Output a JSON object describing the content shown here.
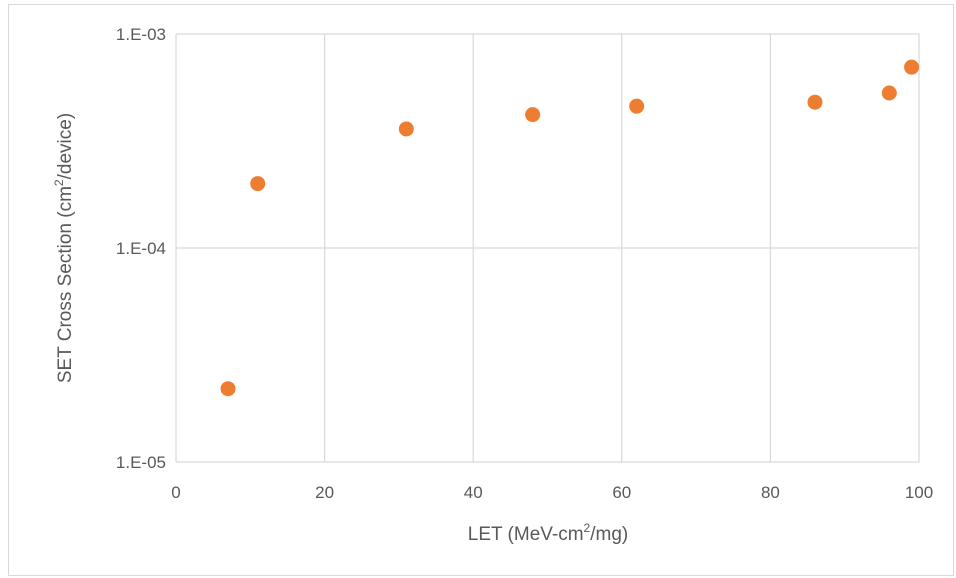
{
  "chart_data": {
    "type": "scatter",
    "xlabel": {
      "pre": "LET (MeV-cm",
      "sup": "2",
      "post": "/mg)"
    },
    "ylabel": {
      "pre": "SET Cross Section (cm",
      "sup": "2",
      "post": "/device)"
    },
    "xlim": [
      0,
      100
    ],
    "x_ticks": [
      0,
      20,
      40,
      60,
      80,
      100
    ],
    "x_tick_labels": [
      "0",
      "20",
      "40",
      "60",
      "80",
      "100"
    ],
    "y_scale": "log",
    "ylim": [
      1e-05,
      0.001
    ],
    "y_ticks": [
      1e-05,
      0.0001,
      0.001
    ],
    "y_tick_labels": [
      "1.E-05",
      "1.E-04",
      "1.E-03"
    ],
    "grid": true,
    "marker_color": "#ED7D31",
    "x": [
      7,
      11,
      31,
      48,
      62,
      86,
      96,
      99
    ],
    "y": [
      2.2e-05,
      0.0002,
      0.00036,
      0.00042,
      0.00046,
      0.00048,
      0.00053,
      0.0007
    ]
  }
}
